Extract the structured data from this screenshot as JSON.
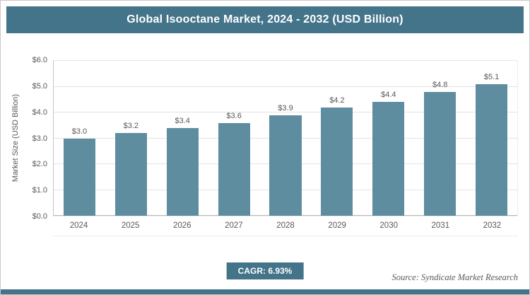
{
  "header": {
    "title": "Global Isooctane Market, 2024 - 2032 (USD Billion)"
  },
  "chart_data": {
    "type": "bar",
    "title": "Global Isooctane Market, 2024 - 2032 (USD Billion)",
    "categories": [
      "2024",
      "2025",
      "2026",
      "2027",
      "2028",
      "2029",
      "2030",
      "2031",
      "2032"
    ],
    "values": [
      3.0,
      3.2,
      3.4,
      3.6,
      3.9,
      4.2,
      4.4,
      4.8,
      5.1
    ],
    "bar_labels": [
      "$3.0",
      "$3.2",
      "$3.4",
      "$3.6",
      "$3.9",
      "$4.2",
      "$4.4",
      "$4.8",
      "$5.1"
    ],
    "xlabel": "",
    "ylabel": "Market Size (USD Billion)",
    "ylim": [
      0,
      6
    ],
    "ytick_step": 1,
    "ytick_labels": [
      "$0.0",
      "$1.0",
      "$2.0",
      "$3.0",
      "$4.0",
      "$5.0",
      "$6.0"
    ],
    "grid": true,
    "legend": "none",
    "bar_color": "#5f8da0"
  },
  "footer": {
    "cagr_label": "CAGR: 6.93%",
    "source": "Source: Syndicate Market Research"
  },
  "colors": {
    "accent": "#44748a",
    "bar": "#5f8da0",
    "gridline": "#e4e4e4"
  }
}
